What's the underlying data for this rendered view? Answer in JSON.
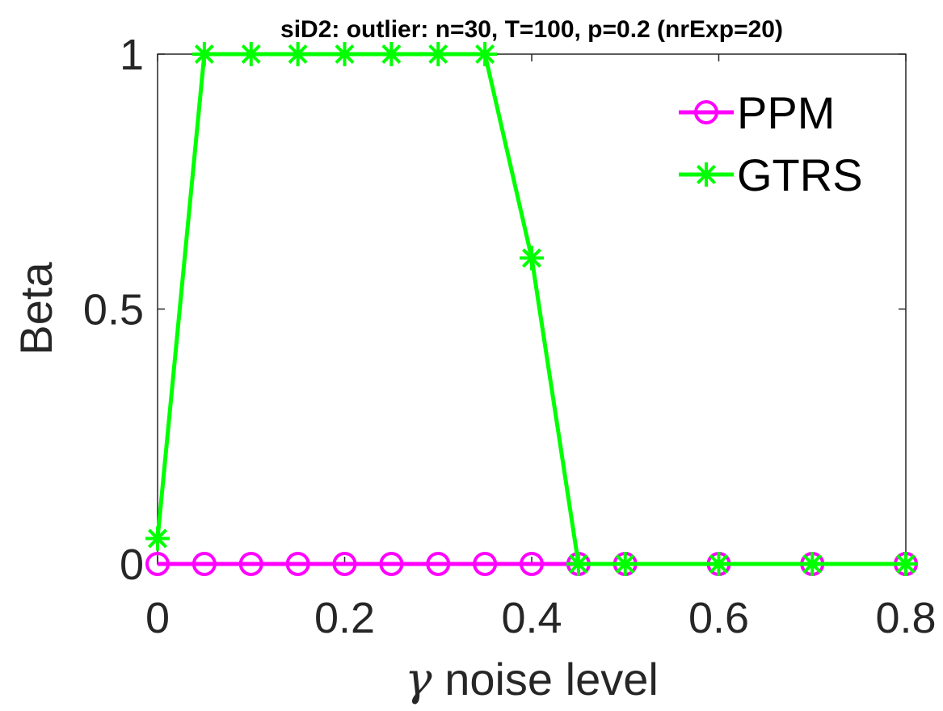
{
  "chart_data": {
    "type": "line",
    "title": "siD2: outlier: n=30, T=100, p=0.2 (nrExp=20)",
    "xlabel_symbol": "γ",
    "xlabel_text": " noise level",
    "ylabel": "Beta",
    "xlim": [
      0,
      0.8
    ],
    "ylim": [
      0,
      1
    ],
    "xticks": [
      0,
      0.2,
      0.4,
      0.6,
      0.8
    ],
    "xtick_labels": [
      "0",
      "0.2",
      "0.4",
      "0.6",
      "0.8"
    ],
    "yticks": [
      0,
      0.5,
      1
    ],
    "ytick_labels": [
      "0",
      "0.5",
      "1"
    ],
    "grid": false,
    "legend_position": "top-right",
    "series": [
      {
        "name": "PPM",
        "color": "#ff00ff",
        "marker": "circle",
        "x": [
          0,
          0.05,
          0.1,
          0.15,
          0.2,
          0.25,
          0.3,
          0.35,
          0.4,
          0.45,
          0.5,
          0.6,
          0.7,
          0.8
        ],
        "y": [
          0,
          0,
          0,
          0,
          0,
          0,
          0,
          0,
          0,
          0,
          0,
          0,
          0,
          0
        ]
      },
      {
        "name": "GTRS",
        "color": "#00ff00",
        "marker": "asterisk",
        "x": [
          0,
          0.05,
          0.1,
          0.15,
          0.2,
          0.25,
          0.3,
          0.35,
          0.4,
          0.45,
          0.5,
          0.6,
          0.7,
          0.8
        ],
        "y": [
          0.05,
          1,
          1,
          1,
          1,
          1,
          1,
          1,
          0.6,
          0,
          0,
          0,
          0,
          0
        ]
      }
    ]
  }
}
